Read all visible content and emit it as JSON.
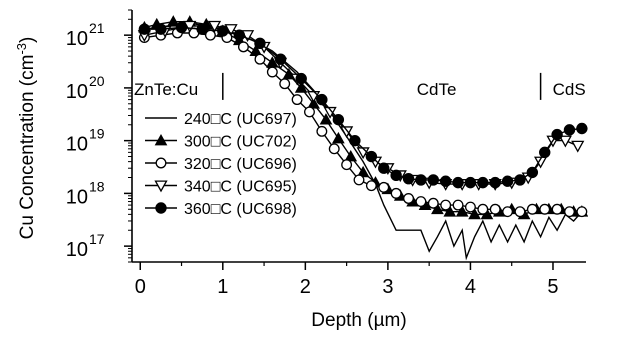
{
  "chart_data": {
    "type": "line",
    "xlabel": "Depth (µm)",
    "ylabel": "Cu Concentration (cm-3)",
    "ylabel_main": "Cu Concentration (cm",
    "ylabel_sup": "-3",
    "ylabel_close": ")",
    "xlim": [
      -0.1,
      5.4
    ],
    "ylim": [
      5e+16,
      3e+21
    ],
    "y_scale": "log",
    "x_ticks": [
      0,
      1,
      2,
      3,
      4,
      5
    ],
    "x_tick_labels": [
      "0",
      "1",
      "2",
      "3",
      "4",
      "5"
    ],
    "y_ticks": [
      1e+17,
      1e+18,
      1e+19,
      1e+20,
      1e+21
    ],
    "y_tick_labels": [
      {
        "base": "10",
        "exp": "17"
      },
      {
        "base": "10",
        "exp": "18"
      },
      {
        "base": "10",
        "exp": "19"
      },
      {
        "base": "10",
        "exp": "20"
      },
      {
        "base": "10",
        "exp": "21"
      }
    ],
    "regions": [
      {
        "label": "ZnTe:Cu",
        "boundary_x": 1.0
      },
      {
        "label": "CdTe",
        "boundary_x": 4.85
      },
      {
        "label": "CdS"
      }
    ],
    "legend_position": "bottom-left",
    "series": [
      {
        "name": "240□C (UC697)",
        "marker": "none",
        "x": [
          0.05,
          0.6,
          1.0,
          1.3,
          1.6,
          1.9,
          2.1,
          2.3,
          2.5,
          2.7,
          2.85,
          2.95,
          3.1,
          3.25,
          3.4,
          3.5,
          3.6,
          3.7,
          3.8,
          3.9,
          3.95,
          4.05,
          4.15,
          4.25,
          4.35,
          4.45,
          4.55,
          4.65,
          4.75,
          4.85,
          4.95,
          5.05,
          5.15,
          5.25,
          5.35
        ],
        "y": [
          1.3e+21,
          1.7e+21,
          1.3e+21,
          9e+20,
          5e+20,
          2e+20,
          9e+19,
          3.5e+19,
          1.2e+19,
          4e+18,
          1.5e+18,
          6e+17,
          2e+17,
          2e+17,
          2e+17,
          8e+16,
          1.5e+17,
          3e+17,
          1e+17,
          2e+17,
          6e+16,
          1.5e+17,
          3e+17,
          1.2e+17,
          2.5e+17,
          1.2e+17,
          2.5e+17,
          1.2e+17,
          3e+17,
          1.5e+17,
          3.5e+17,
          2e+17,
          4e+17,
          3e+17,
          4.5e+17
        ]
      },
      {
        "name": "300□C (UC702)",
        "marker": "triangle-up",
        "x": [
          0.05,
          0.2,
          0.4,
          0.6,
          0.8,
          1.0,
          1.2,
          1.4,
          1.6,
          1.8,
          1.95,
          2.1,
          2.25,
          2.4,
          2.55,
          2.7,
          2.85,
          3.0,
          3.15,
          3.3,
          3.45,
          3.6,
          3.75,
          3.9,
          4.05,
          4.2,
          4.35,
          4.5,
          4.65,
          4.8,
          4.95,
          5.1,
          5.25,
          5.35
        ],
        "y": [
          1.4e+21,
          1.6e+21,
          1.8e+21,
          1.8e+21,
          1.6e+21,
          1.2e+21,
          8e+20,
          5e+20,
          3e+20,
          1.8e+20,
          1e+20,
          5e+19,
          2.5e+19,
          1.1e+19,
          5e+18,
          2.5e+18,
          1.6e+18,
          1.2e+18,
          9e+17,
          7e+17,
          6e+17,
          5e+17,
          4.5e+17,
          4.5e+17,
          4e+17,
          4e+17,
          4.5e+17,
          5e+17,
          4e+17,
          5e+17,
          5e+17,
          5e+17,
          4.5e+17,
          4.5e+17
        ]
      },
      {
        "name": "320□C (UC696)",
        "marker": "circle-open",
        "x": [
          0.05,
          0.25,
          0.45,
          0.65,
          0.85,
          1.05,
          1.25,
          1.45,
          1.6,
          1.75,
          1.9,
          2.05,
          2.2,
          2.35,
          2.5,
          2.65,
          2.8,
          2.95,
          3.1,
          3.25,
          3.4,
          3.55,
          3.7,
          3.85,
          4.0,
          4.15,
          4.3,
          4.45,
          4.6,
          4.75,
          4.9,
          5.05,
          5.2,
          5.35
        ],
        "y": [
          9e+20,
          1e+21,
          1.1e+21,
          1.1e+21,
          1e+21,
          9e+20,
          6e+20,
          3.5e+20,
          2e+20,
          1.2e+20,
          6e+19,
          3.5e+19,
          1.5e+19,
          7e+18,
          3.5e+18,
          1.8e+18,
          1.4e+18,
          1.3e+18,
          1e+18,
          8e+17,
          7e+17,
          6.5e+17,
          6e+17,
          6e+17,
          5.5e+17,
          5e+17,
          5e+17,
          4.5e+17,
          4.5e+17,
          5e+17,
          5e+17,
          5e+17,
          4.5e+17,
          4.5e+17
        ]
      },
      {
        "name": "340□C (UC695)",
        "marker": "triangle-down-open",
        "x": [
          0.05,
          0.3,
          0.6,
          0.9,
          1.1,
          1.3,
          1.5,
          1.7,
          1.9,
          2.1,
          2.3,
          2.5,
          2.7,
          2.85,
          3.0,
          3.15,
          3.3,
          3.5,
          3.7,
          3.9,
          4.1,
          4.3,
          4.5,
          4.7,
          4.85,
          5.0,
          5.15,
          5.3
        ],
        "y": [
          1e+21,
          1.2e+21,
          1.5e+21,
          1.5e+21,
          1.3e+21,
          1e+21,
          6e+20,
          3e+20,
          1.5e+20,
          7e+19,
          3.5e+19,
          1.5e+19,
          6e+18,
          4e+18,
          3e+18,
          2.2e+18,
          1.8e+18,
          1.6e+18,
          1.5e+18,
          1.5e+18,
          1.5e+18,
          1.5e+18,
          1.6e+18,
          2e+18,
          4e+18,
          1e+19,
          1e+19,
          8e+18
        ]
      },
      {
        "name": "360□C (UC698)",
        "marker": "circle-filled",
        "x": [
          0.05,
          0.25,
          0.5,
          0.75,
          1.0,
          1.2,
          1.45,
          1.7,
          1.95,
          2.2,
          2.4,
          2.6,
          2.8,
          2.95,
          3.1,
          3.25,
          3.4,
          3.55,
          3.7,
          3.85,
          4.0,
          4.15,
          4.3,
          4.45,
          4.6,
          4.75,
          4.9,
          5.05,
          5.2,
          5.35
        ],
        "y": [
          1.3e+21,
          1.3e+21,
          1.4e+21,
          1.3e+21,
          1.2e+21,
          1e+21,
          7e+20,
          3.5e+20,
          1.5e+20,
          6e+19,
          2.5e+19,
          1e+19,
          5e+18,
          3e+18,
          2.2e+18,
          1.9e+18,
          1.8e+18,
          1.8e+18,
          1.7e+18,
          1.6e+18,
          1.6e+18,
          1.6e+18,
          1.6e+18,
          1.7e+18,
          1.8e+18,
          2.5e+18,
          6e+18,
          1.3e+19,
          1.6e+19,
          1.7e+19
        ]
      }
    ]
  }
}
